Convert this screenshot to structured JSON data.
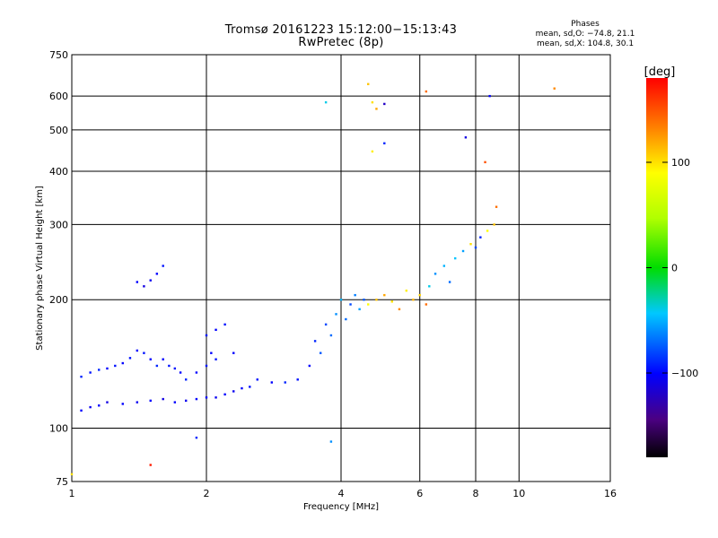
{
  "title": {
    "line1": "Tromsø 20161223 15:12:00−15:13:43",
    "line2": "RwPretec (8p)"
  },
  "stats": {
    "heading": "Phases",
    "o_mode": "mean, sd,O: −74.8, 21.1",
    "x_mode": "mean, sd,X: 104.8, 30.1"
  },
  "colorbar": {
    "label": "[deg]",
    "ticks": [
      "100",
      "0",
      "−100"
    ],
    "tick_values": [
      100,
      0,
      -100
    ],
    "range": [
      -180,
      180
    ]
  },
  "chart_data": {
    "type": "scatter",
    "title": "Tromsø 20161223 15:12:00−15:13:43 RwPretec (8p)",
    "xlabel": "Frequency [MHz]",
    "ylabel": "Stationary phase Virtual Height [km]",
    "xscale": "log",
    "yscale": "log",
    "xlim": [
      1,
      16
    ],
    "ylim": [
      75,
      750
    ],
    "xticks": [
      1,
      2,
      4,
      6,
      8,
      10,
      16
    ],
    "xtick_labels": [
      "1",
      "2",
      "4",
      "6",
      "8",
      "10",
      "16"
    ],
    "yticks": [
      75,
      100,
      200,
      300,
      400,
      500,
      600,
      750
    ],
    "ytick_labels": [
      "75",
      "100",
      "200",
      "300",
      "400",
      "500",
      "600",
      "750"
    ],
    "grid": true,
    "color_variable": "phase [deg]",
    "series": [
      {
        "points": [
          [
            1.05,
            132,
            -90
          ],
          [
            1.1,
            135,
            -95
          ],
          [
            1.15,
            137,
            -90
          ],
          [
            1.2,
            138,
            -100
          ],
          [
            1.25,
            140,
            -95
          ],
          [
            1.3,
            142,
            -100
          ],
          [
            1.35,
            146,
            -95
          ],
          [
            1.4,
            152,
            -100
          ],
          [
            1.45,
            150,
            -95
          ],
          [
            1.5,
            145,
            -100
          ],
          [
            1.55,
            140,
            -90
          ],
          [
            1.6,
            145,
            -100
          ],
          [
            1.65,
            140,
            -95
          ],
          [
            1.7,
            138,
            -95
          ],
          [
            1.75,
            135,
            -100
          ],
          [
            1.8,
            130,
            -90
          ],
          [
            1.9,
            135,
            -100
          ],
          [
            2.0,
            140,
            -95
          ],
          [
            2.05,
            150,
            -100
          ],
          [
            2.1,
            145,
            -95
          ],
          [
            1.05,
            110,
            -100
          ],
          [
            1.1,
            112,
            -105
          ],
          [
            1.15,
            113,
            -100
          ],
          [
            1.2,
            115,
            -110
          ],
          [
            1.3,
            114,
            -100
          ],
          [
            1.4,
            115,
            -105
          ],
          [
            1.5,
            116,
            -100
          ],
          [
            1.6,
            117,
            -110
          ],
          [
            1.7,
            115,
            -100
          ],
          [
            1.8,
            116,
            -105
          ],
          [
            1.9,
            117,
            -100
          ],
          [
            2.0,
            118,
            -100
          ],
          [
            2.1,
            118,
            -105
          ],
          [
            2.2,
            120,
            -100
          ],
          [
            2.3,
            122,
            -105
          ],
          [
            2.4,
            124,
            -100
          ],
          [
            2.5,
            125,
            -95
          ],
          [
            1.4,
            220,
            -100
          ],
          [
            1.45,
            215,
            -110
          ],
          [
            1.5,
            222,
            -105
          ],
          [
            1.55,
            230,
            -100
          ],
          [
            1.6,
            240,
            -95
          ],
          [
            2.0,
            165,
            -95
          ],
          [
            2.1,
            170,
            -100
          ],
          [
            2.2,
            175,
            -95
          ],
          [
            2.3,
            150,
            -100
          ],
          [
            2.6,
            130,
            -95
          ],
          [
            2.8,
            128,
            -100
          ],
          [
            3.0,
            128,
            -90
          ],
          [
            3.2,
            130,
            -95
          ],
          [
            3.4,
            140,
            -100
          ],
          [
            3.5,
            160,
            -90
          ],
          [
            3.6,
            150,
            -75
          ],
          [
            3.7,
            175,
            -80
          ],
          [
            3.8,
            165,
            -70
          ],
          [
            3.9,
            185,
            -60
          ],
          [
            4.0,
            200,
            -50
          ],
          [
            4.1,
            180,
            -70
          ],
          [
            4.2,
            195,
            -80
          ],
          [
            4.3,
            205,
            -65
          ],
          [
            4.4,
            190,
            -55
          ],
          [
            4.5,
            200,
            -75
          ],
          [
            4.6,
            195,
            90
          ],
          [
            4.8,
            200,
            110
          ],
          [
            5.0,
            205,
            120
          ],
          [
            5.2,
            198,
            100
          ],
          [
            5.4,
            190,
            130
          ],
          [
            5.6,
            210,
            95
          ],
          [
            5.8,
            200,
            115
          ],
          [
            6.0,
            205,
            105
          ],
          [
            6.2,
            195,
            140
          ],
          [
            6.3,
            215,
            -40
          ],
          [
            6.5,
            230,
            -60
          ],
          [
            6.8,
            240,
            -50
          ],
          [
            7.0,
            220,
            -70
          ],
          [
            7.2,
            250,
            -45
          ],
          [
            7.5,
            260,
            -55
          ],
          [
            7.8,
            270,
            100
          ],
          [
            8.0,
            265,
            -80
          ],
          [
            8.2,
            280,
            -90
          ],
          [
            8.5,
            290,
            90
          ],
          [
            8.8,
            300,
            110
          ],
          [
            3.7,
            580,
            -40
          ],
          [
            4.6,
            640,
            110
          ],
          [
            4.7,
            580,
            100
          ],
          [
            4.8,
            560,
            120
          ],
          [
            5.0,
            575,
            -120
          ],
          [
            4.7,
            445,
            95
          ],
          [
            5.0,
            465,
            -90
          ],
          [
            6.2,
            615,
            140
          ],
          [
            7.6,
            480,
            -110
          ],
          [
            8.4,
            420,
            150
          ],
          [
            8.6,
            600,
            -100
          ],
          [
            12.0,
            625,
            130
          ],
          [
            8.9,
            330,
            140
          ],
          [
            1.5,
            82,
            170
          ],
          [
            1.0,
            78,
            100
          ],
          [
            1.9,
            95,
            -90
          ],
          [
            3.8,
            93,
            -60
          ]
        ]
      }
    ]
  }
}
